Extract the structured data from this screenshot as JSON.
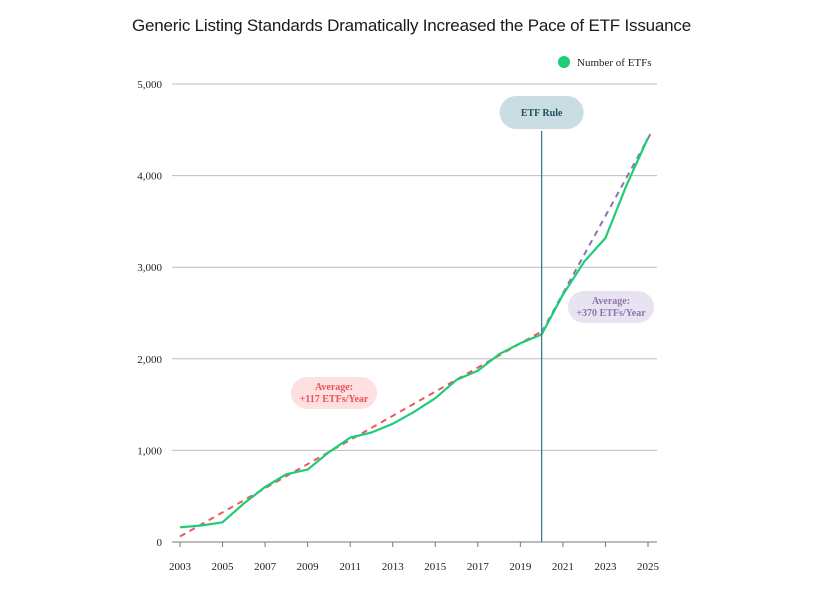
{
  "chart_data": {
    "type": "line",
    "title": "Generic Listing Standards Dramatically Increased the Pace of ETF Issuance",
    "xlabel": "",
    "ylabel": "",
    "xlim": [
      2003,
      2025.3
    ],
    "ylim": [
      0,
      5000
    ],
    "yticks": [
      0,
      1000,
      2000,
      3000,
      4000,
      5000
    ],
    "ytick_labels": [
      "0",
      "1,000",
      "2,000",
      "3,000",
      "4,000",
      "5,000"
    ],
    "xticks": [
      2003,
      2005,
      2007,
      2009,
      2011,
      2013,
      2015,
      2017,
      2019,
      2021,
      2023,
      2025
    ],
    "xtick_labels": [
      "2003",
      "2005",
      "2007",
      "2009",
      "2011",
      "2013",
      "2015",
      "2017",
      "2019",
      "2021",
      "2023",
      "2025"
    ],
    "grid": true,
    "legend": {
      "position": "top-right",
      "label": "Number of ETFs"
    },
    "series": [
      {
        "name": "Number of ETFs",
        "color": "#1fcc78",
        "x": [
          2003,
          2004,
          2005,
          2006,
          2007,
          2008,
          2009,
          2010,
          2011,
          2012,
          2013,
          2014,
          2015,
          2016,
          2017,
          2018,
          2019,
          2020,
          2021,
          2022,
          2023,
          2024,
          2025
        ],
        "values": [
          160,
          180,
          215,
          420,
          600,
          740,
          790,
          980,
          1140,
          1195,
          1290,
          1420,
          1570,
          1770,
          1870,
          2050,
          2170,
          2265,
          2700,
          3060,
          3320,
          3900,
          4410
        ]
      }
    ],
    "trendlines": [
      {
        "name": "Average: +117 ETFs/Year",
        "color": "#f0575b",
        "x": [
          2003,
          2020
        ],
        "values": [
          60,
          2300
        ]
      },
      {
        "name": "Average: +370 ETFs/Year",
        "color": "#8b76ae",
        "x": [
          2020,
          2025.2
        ],
        "values": [
          2290,
          4490
        ]
      }
    ],
    "event": {
      "label": "ETF Rule",
      "x": 2020,
      "color": "#3b7f8f"
    },
    "annotations": [
      {
        "line1": "Average:",
        "line2": "+117 ETFs/Year",
        "text_color": "#e8535a",
        "bg_color": "#fde0df"
      },
      {
        "line1": "Average:",
        "line2": "+370 ETFs/Year",
        "text_color": "#8b76ae",
        "bg_color": "#e7e3f1"
      }
    ]
  }
}
